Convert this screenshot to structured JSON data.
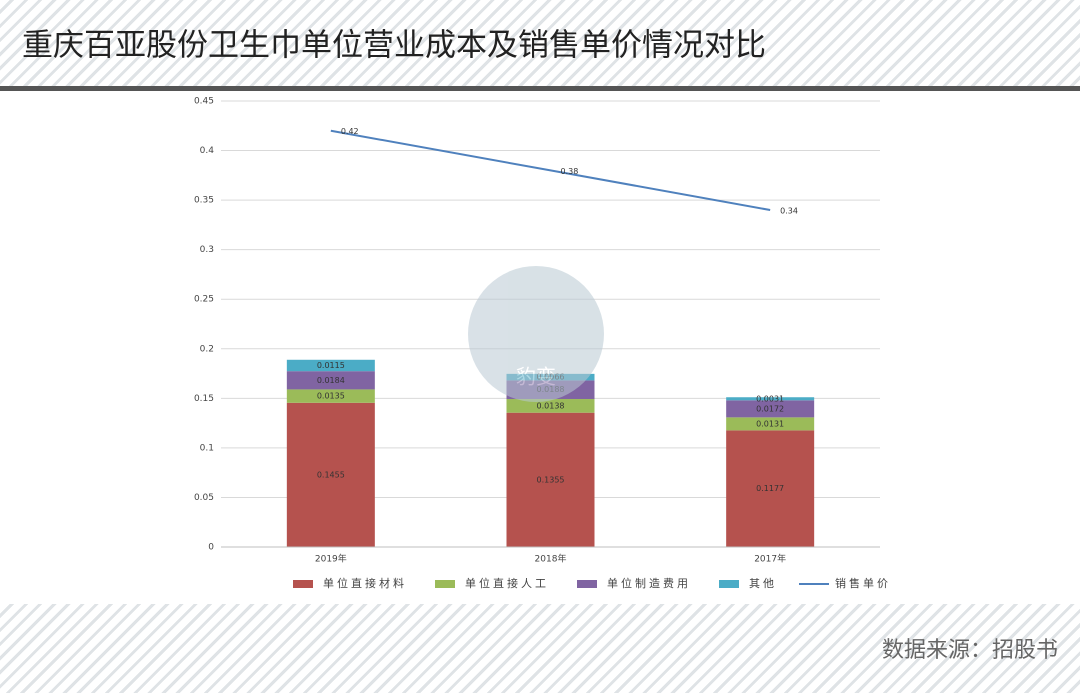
{
  "header": {
    "title": "重庆百亚股份卫生巾单位营业成本及销售单价情况对比"
  },
  "footer": {
    "source": "数据来源：招股书"
  },
  "watermark": "豹变",
  "chart_data": {
    "type": "bar",
    "categories": [
      "2019年",
      "2018年",
      "2017年"
    ],
    "series": [
      {
        "name": "单位直接材料",
        "color": "#b5524e",
        "values": [
          0.1455,
          0.1355,
          0.1177
        ]
      },
      {
        "name": "单位直接人工",
        "color": "#9bbb59",
        "values": [
          0.0135,
          0.0138,
          0.0131
        ]
      },
      {
        "name": "单位制造费用",
        "color": "#8064a2",
        "values": [
          0.0184,
          0.0188,
          0.0172
        ]
      },
      {
        "name": "其他",
        "color": "#4bacc6",
        "values": [
          0.0115,
          0.0066,
          0.0031
        ]
      },
      {
        "name": "销售单价",
        "color": "#4f81bd",
        "type": "line",
        "values": [
          0.42,
          0.38,
          0.34
        ]
      }
    ],
    "ylim": [
      0,
      0.45
    ],
    "yticks": [
      0,
      0.05,
      0.1,
      0.15,
      0.2,
      0.25,
      0.3,
      0.35,
      0.4,
      0.45
    ],
    "grid": true,
    "legend": "bottom"
  }
}
